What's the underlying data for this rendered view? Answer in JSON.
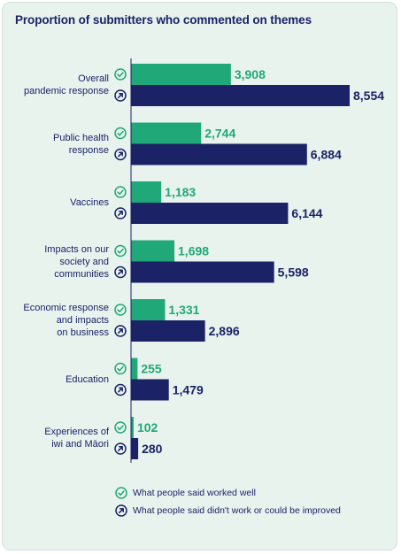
{
  "chart_data": {
    "type": "bar",
    "orientation": "horizontal",
    "title": "Proportion of submitters who commented on themes",
    "categories": [
      "Overall\npandemic response",
      "Public health\nresponse",
      "Vaccines",
      "Impacts on our\nsociety and\ncommunities",
      "Economic response\nand impacts\non business",
      "Education",
      "Experiences of\niwi and Māori"
    ],
    "value_labels": {
      "worked_well": [
        "3,908",
        "2,744",
        "1,183",
        "1,698",
        "1,331",
        "255",
        "102"
      ],
      "improve": [
        "8,554",
        "6,884",
        "6,144",
        "5,598",
        "2,896",
        "1,479",
        "280"
      ]
    },
    "series": [
      {
        "name": "What people said worked well",
        "icon": "check-circle-icon",
        "color": "#20a878",
        "values": [
          3908,
          2744,
          1183,
          1698,
          1331,
          255,
          102
        ]
      },
      {
        "name": "What people said didn't work or could be improved",
        "icon": "arrow-up-right-circle-icon",
        "color": "#1b2266",
        "values": [
          8554,
          6884,
          6144,
          5598,
          2896,
          1479,
          280
        ]
      }
    ],
    "xlim": [
      0,
      8554
    ],
    "legend": "bottom"
  }
}
